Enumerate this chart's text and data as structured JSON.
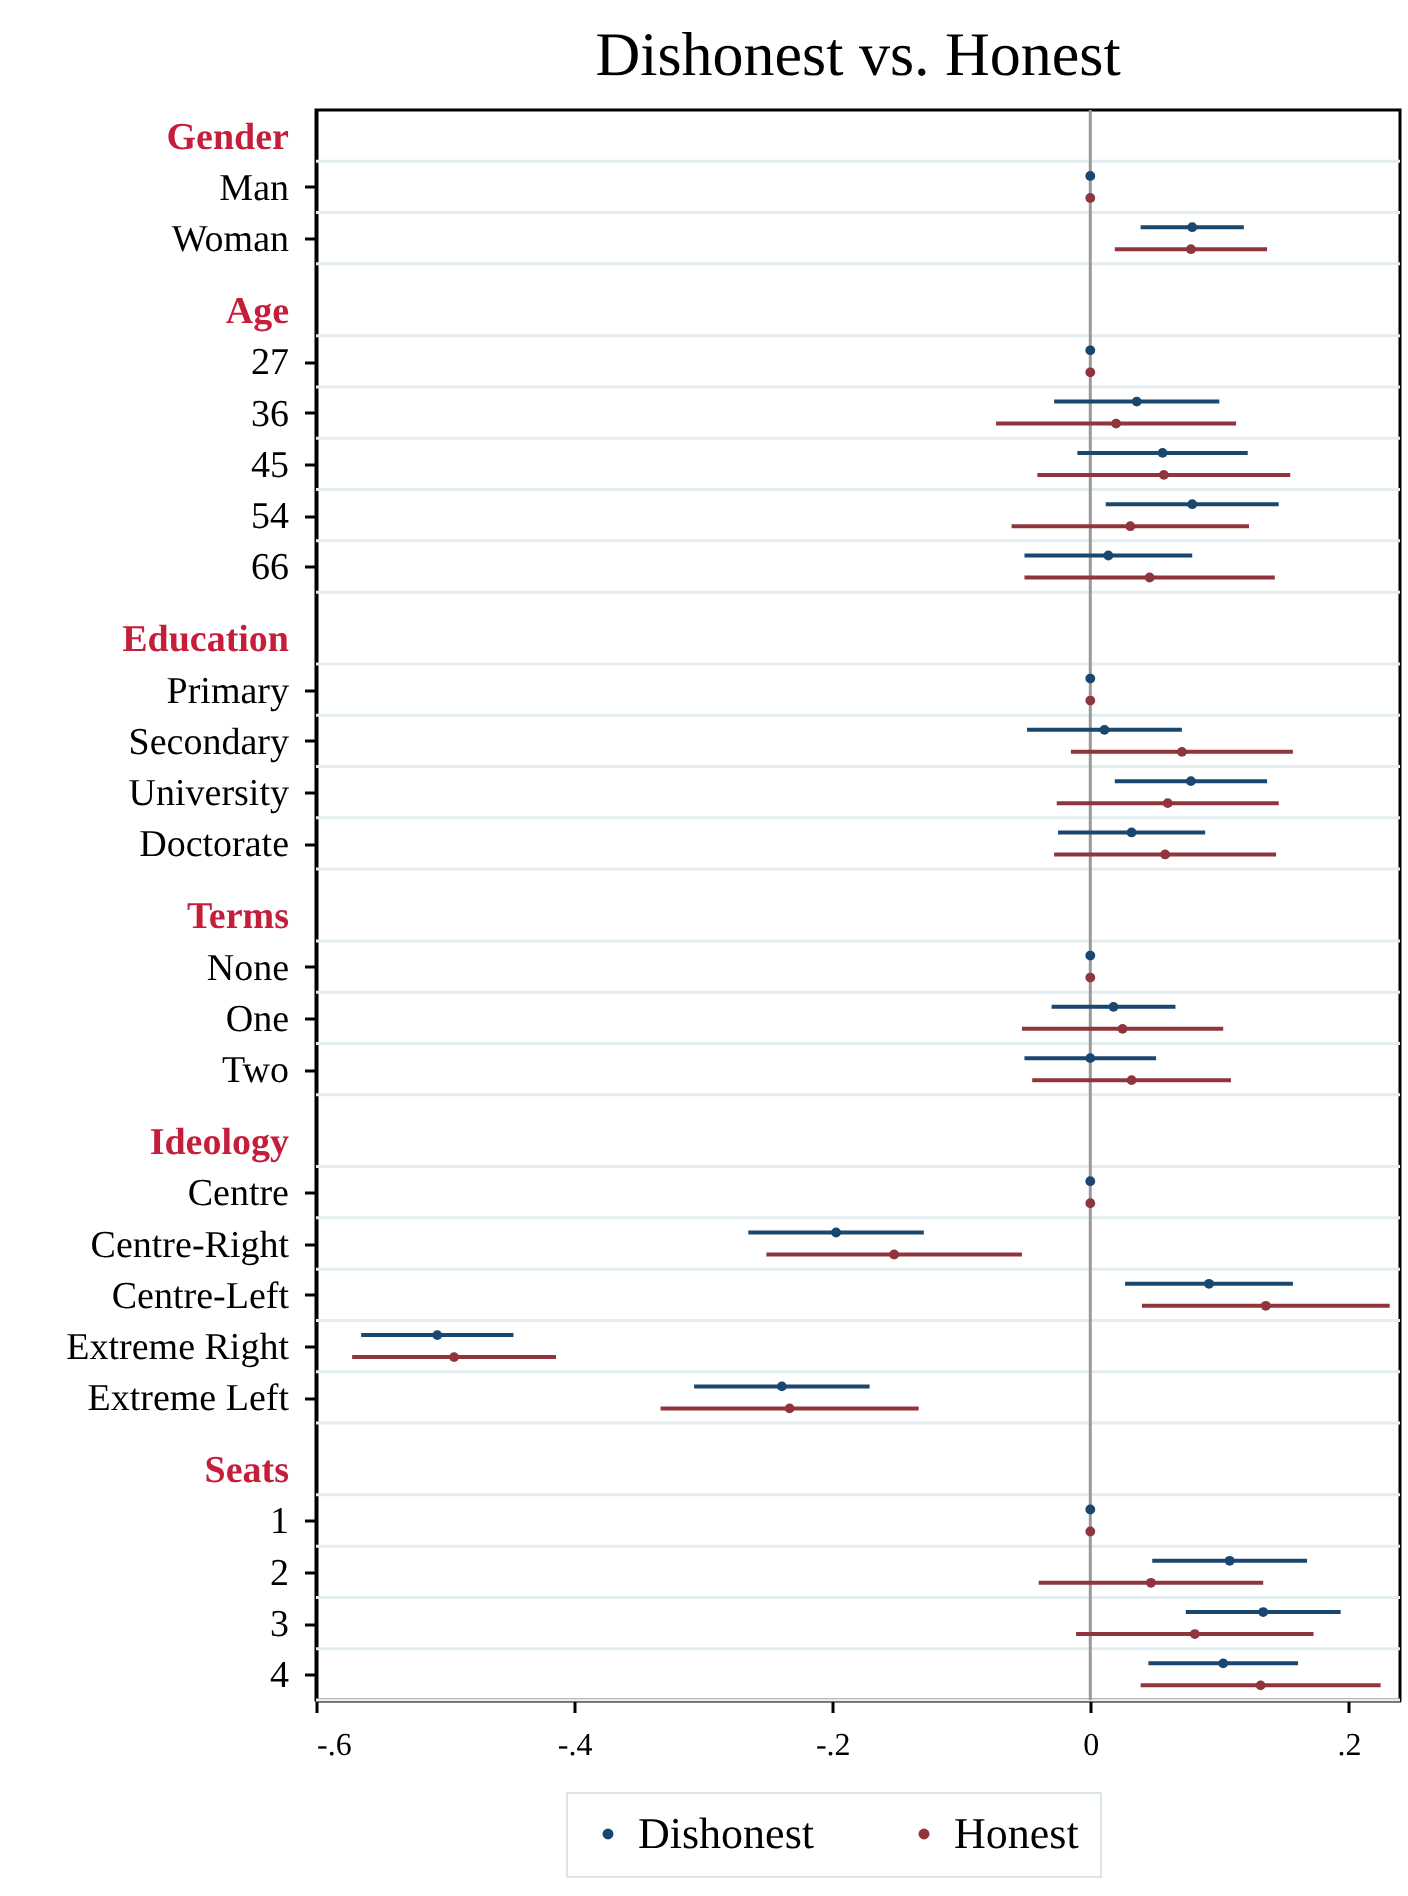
{
  "chart_data": {
    "type": "scatter",
    "title": "Dishonest vs. Honest",
    "orientation": "horizontal",
    "categories": [
      "Gender",
      "Man",
      "Woman",
      "Age",
      "27",
      "36",
      "45",
      "54",
      "66",
      "Education",
      "Primary",
      "Secondary",
      "University",
      "Doctorate",
      "Terms",
      "None",
      "One",
      "Two",
      "Ideology",
      "Centre",
      "Centre-Right",
      "Centre-Left",
      "Extreme Right",
      "Extreme Left",
      "Seats",
      "1",
      "2",
      "3",
      "4"
    ],
    "series": [
      {
        "name": "Dishonest",
        "color": "#1a476f",
        "values": [
          null,
          0,
          0.079,
          null,
          0,
          0.036,
          0.056,
          0.079,
          0.014,
          null,
          0,
          0.011,
          0.078,
          0.032,
          null,
          0,
          0.018,
          0.0,
          null,
          0,
          -0.197,
          0.092,
          -0.506,
          -0.239,
          null,
          0,
          0.108,
          0.134,
          0.103
        ],
        "errors": [
          null,
          null,
          0.04,
          null,
          null,
          0.064,
          0.066,
          0.067,
          0.065,
          null,
          null,
          0.06,
          0.059,
          0.057,
          null,
          null,
          0.048,
          0.051,
          null,
          null,
          0.068,
          0.065,
          0.059,
          0.068,
          null,
          null,
          0.06,
          0.06,
          0.058
        ]
      },
      {
        "name": "Honest",
        "color": "#90353b",
        "values": [
          null,
          0,
          0.078,
          null,
          0,
          0.02,
          0.057,
          0.031,
          0.046,
          null,
          0,
          0.071,
          0.06,
          0.058,
          null,
          0,
          0.025,
          0.032,
          null,
          0,
          -0.152,
          0.136,
          -0.493,
          -0.233,
          null,
          0,
          0.047,
          0.081,
          0.132
        ],
        "errors": [
          null,
          null,
          0.059,
          null,
          null,
          0.093,
          0.098,
          0.092,
          0.097,
          null,
          null,
          0.086,
          0.086,
          0.086,
          null,
          null,
          0.078,
          0.077,
          null,
          null,
          0.099,
          0.096,
          0.079,
          0.1,
          null,
          null,
          0.087,
          0.092,
          0.093
        ]
      }
    ],
    "xlim": [
      -0.6,
      0.24
    ],
    "xticks": [
      {
        "value": -0.6,
        "label": "-.6"
      },
      {
        "value": -0.4,
        "label": "-.4"
      },
      {
        "value": -0.2,
        "label": "-.2"
      },
      0,
      {
        "value": 0.2,
        "label": ".2"
      }
    ],
    "ref_lines": [
      {
        "axis": "x",
        "value": 0,
        "color": "#999999"
      }
    ],
    "grid": "y",
    "legend": "bottom",
    "marker": "circle"
  }
}
